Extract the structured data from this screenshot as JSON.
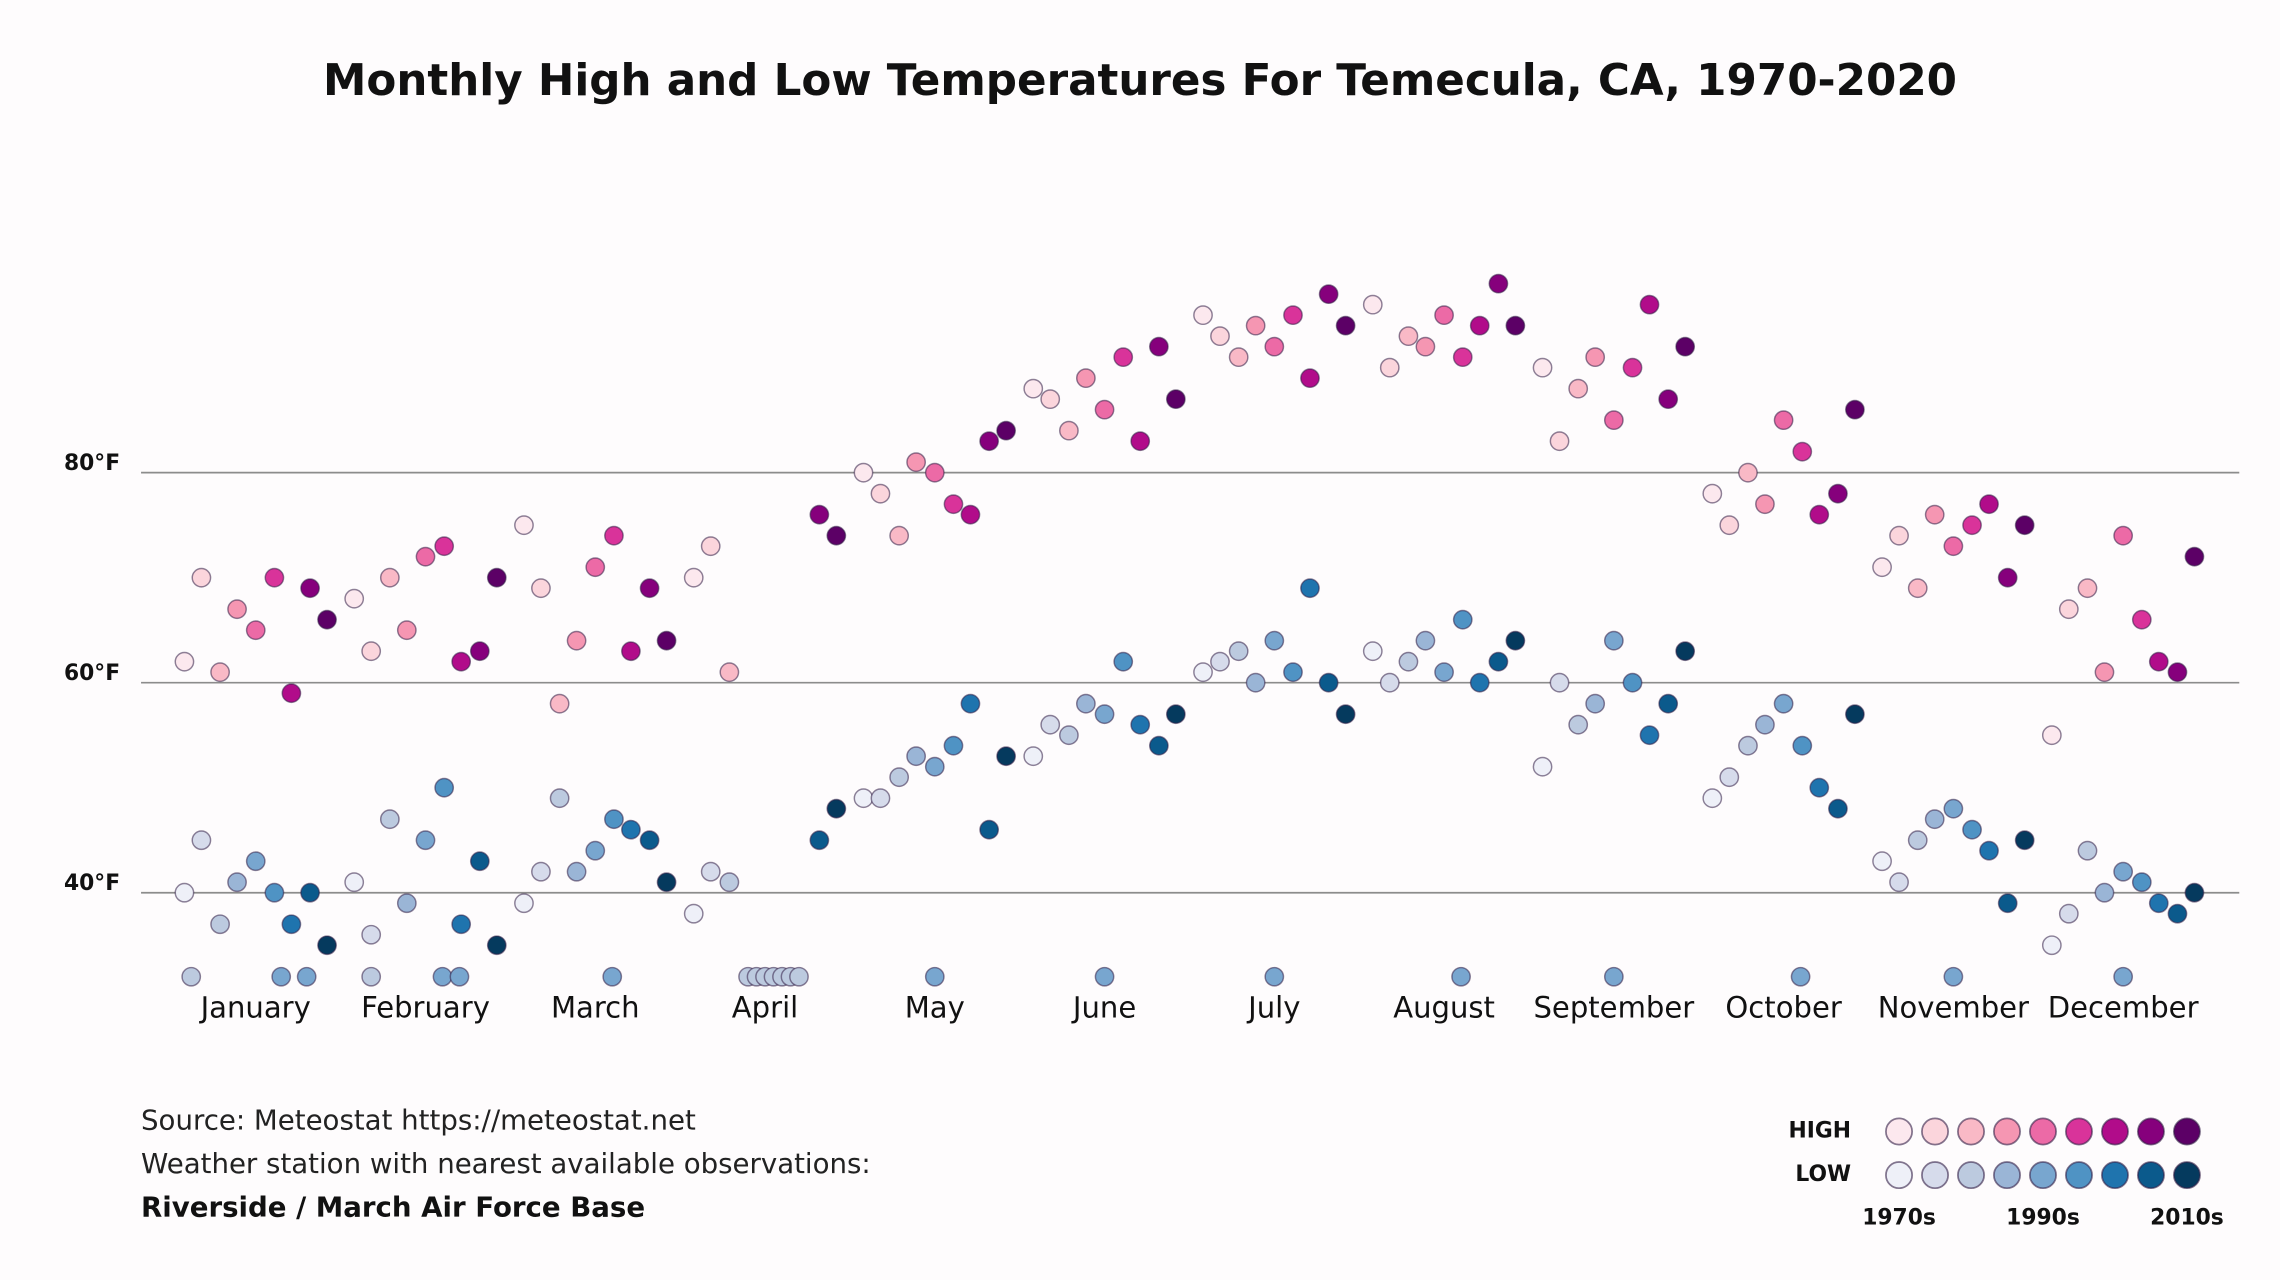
{
  "chart_data": {
    "type": "scatter",
    "title": "Monthly High and Low Temperatures For Temecula, CA, 1970-2020",
    "notes": [
      "Source: Meteostat https://meteostat.net",
      "Weather station with nearest available observations:",
      "Riverside / March Air Force Base"
    ],
    "xlim": [
      -0.5,
      11.5
    ],
    "xticks": [
      {
        "value": 0,
        "label": "January"
      },
      {
        "value": 1,
        "label": "February"
      },
      {
        "value": 2,
        "label": "March"
      },
      {
        "value": 3,
        "label": "April"
      },
      {
        "value": 4,
        "label": "May"
      },
      {
        "value": 5,
        "label": "June"
      },
      {
        "value": 6,
        "label": "July"
      },
      {
        "value": 7,
        "label": "August"
      },
      {
        "value": 8,
        "label": "September"
      },
      {
        "value": 9,
        "label": "October"
      },
      {
        "value": 10,
        "label": "November"
      },
      {
        "value": 11,
        "label": "December"
      }
    ],
    "ylim": [
      30,
      100
    ],
    "yticks": [
      {
        "value": 40,
        "label": "40°F"
      },
      {
        "value": 60,
        "label": "60°F"
      },
      {
        "value": 80,
        "label": "80°F"
      }
    ],
    "grid": true,
    "legend": {
      "rows": [
        "HIGH",
        "LOW"
      ],
      "ticks": [
        "1970s",
        "1990s",
        "2010s"
      ]
    },
    "series": [
      {
        "color": "#fce8ee",
        "x": [
          -0.42,
          0.58,
          1.58,
          2.58,
          3.58,
          4.58,
          5.58,
          6.58,
          7.58,
          8.58,
          9.58,
          10.58
        ],
        "values": [
          62,
          68,
          75,
          70,
          80,
          88,
          95,
          96,
          90,
          78,
          71,
          55
        ]
      },
      {
        "color": "#fbd5dc",
        "x": [
          -0.32,
          0.68,
          1.68,
          2.68,
          3.68,
          4.68,
          5.68,
          6.68,
          7.68,
          8.68,
          9.68,
          10.68
        ],
        "values": [
          70,
          63,
          69,
          73,
          78,
          87,
          93,
          90,
          83,
          75,
          74,
          67
        ]
      },
      {
        "color": "#f9b9c6",
        "x": [
          -0.21,
          0.79,
          1.79,
          2.79,
          3.79,
          4.79,
          5.79,
          6.79,
          7.79,
          8.79,
          9.79,
          10.79
        ],
        "values": [
          61,
          70,
          58,
          61,
          74,
          84,
          91,
          93,
          88,
          80,
          69,
          69
        ]
      },
      {
        "color": "#f596b2",
        "x": [
          -0.11,
          0.89,
          1.89,
          3.89,
          4.89,
          5.89,
          6.89,
          7.89,
          8.89,
          9.89,
          10.89
        ],
        "values": [
          67,
          65,
          64,
          81,
          89,
          94,
          92,
          91,
          77,
          76,
          61
        ]
      },
      {
        "color": "#ec6aa6",
        "x": [
          0,
          1,
          2,
          4,
          5,
          6,
          7,
          8,
          9,
          10,
          11
        ],
        "values": [
          65,
          72,
          71,
          80,
          86,
          92,
          95,
          85,
          85,
          73,
          74
        ]
      },
      {
        "color": "#d9339a",
        "x": [
          0.11,
          1.11,
          2.11,
          4.11,
          5.11,
          6.11,
          7.11,
          8.11,
          9.11,
          10.11,
          11.11
        ],
        "values": [
          70,
          73,
          74,
          77,
          91,
          95,
          91,
          90,
          82,
          75,
          66
        ]
      },
      {
        "color": "#b10c8a",
        "x": [
          0.21,
          1.21,
          2.21,
          4.21,
          5.21,
          6.21,
          7.21,
          8.21,
          9.21,
          10.21,
          11.21
        ],
        "values": [
          59,
          62,
          63,
          76,
          83,
          89,
          94,
          96,
          76,
          77,
          62
        ]
      },
      {
        "color": "#86007c",
        "x": [
          0.32,
          1.32,
          2.32,
          3.32,
          4.32,
          5.32,
          6.32,
          7.32,
          8.32,
          9.32,
          10.32,
          11.32
        ],
        "values": [
          69,
          63,
          69,
          76,
          83,
          92,
          97,
          98,
          87,
          78,
          70,
          61
        ]
      },
      {
        "color": "#5c0066",
        "x": [
          0.42,
          1.42,
          2.42,
          3.42,
          4.42,
          5.42,
          6.42,
          7.42,
          8.42,
          9.42,
          10.42,
          11.42
        ],
        "values": [
          66,
          70,
          64,
          74,
          84,
          87,
          94,
          94,
          92,
          86,
          75,
          72
        ]
      },
      {
        "color": "#eef0f8",
        "x": [
          -0.42,
          0.58,
          1.58,
          2.58,
          3.58,
          4.58,
          5.58,
          6.58,
          7.58,
          8.58,
          9.58,
          10.58
        ],
        "values": [
          40,
          41,
          39,
          38,
          49,
          53,
          61,
          63,
          52,
          49,
          43,
          35
        ]
      },
      {
        "color": "#d6dbeb",
        "x": [
          -0.32,
          0.68,
          1.68,
          2.68,
          3.68,
          4.68,
          5.68,
          6.68,
          7.68,
          8.68,
          9.68,
          10.68
        ],
        "values": [
          45,
          36,
          42,
          42,
          49,
          56,
          62,
          60,
          60,
          51,
          41,
          38
        ]
      },
      {
        "color": "#bccadf",
        "x": [
          -0.21,
          0.79,
          1.79,
          2.79,
          3.79,
          4.79,
          5.79,
          6.79,
          7.79,
          8.79,
          9.79,
          10.79,
          -0.38,
          0.68,
          2.9,
          2.95,
          3.0,
          3.05,
          3.1,
          3.15,
          3.2
        ],
        "values": [
          37,
          47,
          49,
          41,
          51,
          55,
          63,
          62,
          56,
          54,
          45,
          44,
          32,
          32,
          32,
          32,
          32,
          32,
          32,
          32,
          32
        ]
      },
      {
        "color": "#9ab5d6",
        "x": [
          -0.11,
          0.89,
          1.89,
          3.89,
          4.89,
          5.89,
          6.89,
          7.89,
          8.89,
          9.89,
          10.89
        ],
        "values": [
          41,
          39,
          42,
          53,
          58,
          60,
          64,
          58,
          56,
          47,
          40
        ]
      },
      {
        "color": "#78a6cf",
        "x": [
          0,
          1,
          2,
          4,
          5,
          6,
          7,
          8,
          9,
          10,
          11,
          0.15,
          0.3,
          1.1,
          1.2,
          2.1,
          4.0,
          5.0,
          6.0,
          7.1,
          8.0,
          9.1,
          10.0,
          11.0
        ],
        "values": [
          43,
          45,
          44,
          52,
          57,
          64,
          61,
          64,
          58,
          48,
          42,
          32,
          32,
          32,
          32,
          32,
          32,
          32,
          32,
          32,
          32,
          32,
          32,
          32
        ]
      },
      {
        "color": "#4f93c4",
        "x": [
          0.11,
          1.11,
          2.11,
          4.11,
          5.11,
          6.11,
          7.11,
          8.11,
          9.11,
          10.11,
          11.11
        ],
        "values": [
          40,
          50,
          47,
          54,
          62,
          61,
          66,
          60,
          54,
          46,
          41
        ]
      },
      {
        "color": "#1f74ae",
        "x": [
          0.21,
          1.21,
          2.21,
          4.21,
          5.21,
          6.21,
          7.21,
          8.21,
          9.21,
          10.21,
          11.21
        ],
        "values": [
          37,
          37,
          46,
          58,
          56,
          69,
          60,
          55,
          50,
          44,
          39
        ]
      },
      {
        "color": "#0b5a8c",
        "x": [
          0.32,
          1.32,
          2.32,
          3.32,
          4.32,
          5.32,
          6.32,
          7.32,
          8.32,
          9.32,
          10.32,
          11.32
        ],
        "values": [
          40,
          43,
          45,
          45,
          46,
          54,
          60,
          62,
          58,
          48,
          39,
          38
        ]
      },
      {
        "color": "#053a5e",
        "x": [
          0.42,
          1.42,
          2.42,
          3.42,
          4.42,
          5.42,
          6.42,
          7.42,
          8.42,
          9.42,
          10.42,
          11.42
        ],
        "values": [
          35,
          35,
          41,
          48,
          53,
          57,
          57,
          64,
          63,
          57,
          45,
          40
        ]
      }
    ]
  }
}
